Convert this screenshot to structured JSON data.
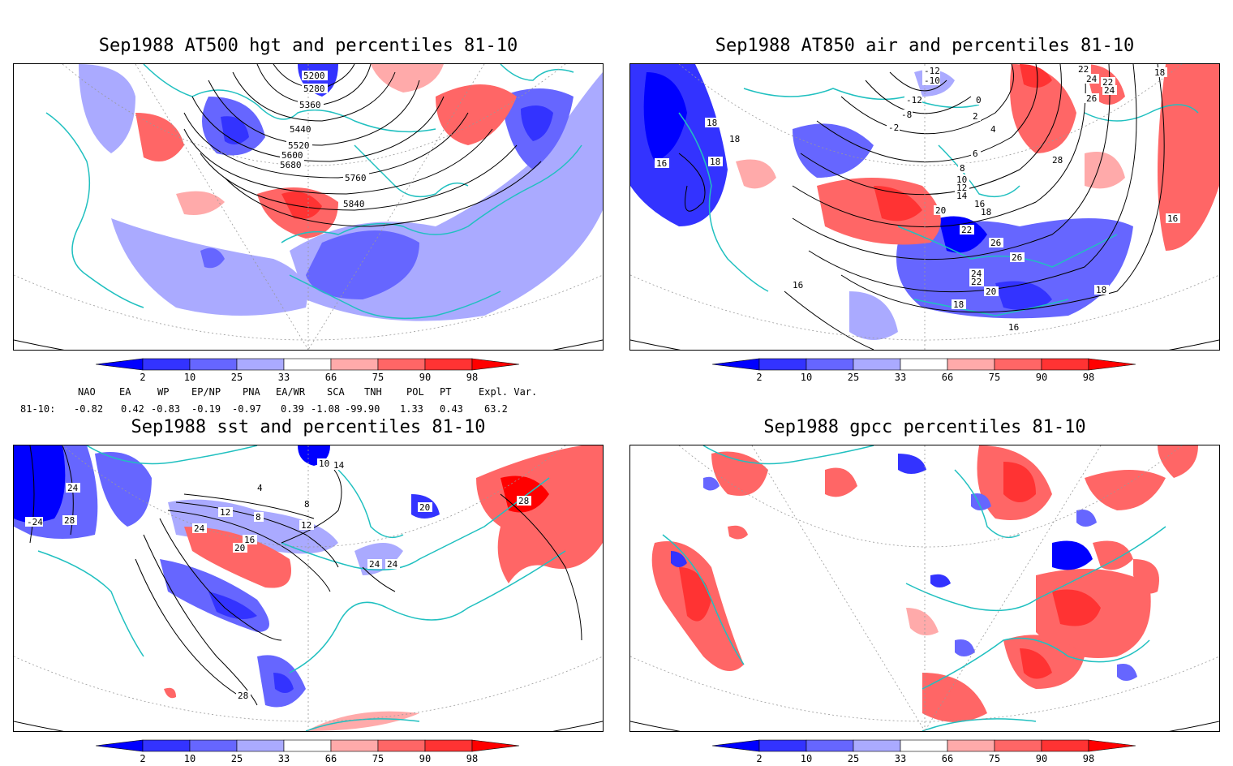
{
  "panels": [
    {
      "title": "Sep1988 AT500 hgt and percentiles 81-10",
      "contour_labels": [
        "5200",
        "5280",
        "5360",
        "5440",
        "5520",
        "5600",
        "5680",
        "5760",
        "5840"
      ]
    },
    {
      "title": "Sep1988 AT850 air and percentiles 81-10",
      "contour_labels": [
        "-12",
        "-10",
        "-12",
        "-8",
        "-2",
        "0",
        "2",
        "4",
        "6",
        "8",
        "10",
        "12",
        "14",
        "16",
        "18",
        "18",
        "18",
        "18",
        "16",
        "16",
        "20",
        "22",
        "22",
        "24",
        "26",
        "26",
        "24",
        "22",
        "20",
        "18",
        "16",
        "16",
        "18",
        "22",
        "24",
        "26",
        "28",
        "18"
      ]
    },
    {
      "title": "Sep1988 sst and percentiles 81-10",
      "contour_labels": [
        "-24",
        "28",
        "24",
        "12",
        "8",
        "8",
        "12",
        "16",
        "20",
        "24",
        "24",
        "20",
        "4",
        "14",
        "10",
        "24",
        "28",
        "28"
      ]
    },
    {
      "title": "Sep1988 gpcc percentiles 81-10",
      "contour_labels": []
    }
  ],
  "colorbar": {
    "ticks": [
      "2",
      "10",
      "25",
      "33",
      "66",
      "75",
      "90",
      "98"
    ],
    "colors": {
      "below2": "#0000ff",
      "c2_10": "#3333ff",
      "c10_25": "#6666ff",
      "c25_33": "#aaaaff",
      "c66_75": "#ffaaaa",
      "c75_90": "#ff6666",
      "c90_98": "#ff3333",
      "above98": "#ff0000"
    }
  },
  "indices": {
    "row_label": "81-10:",
    "names": [
      "NAO",
      "EA",
      "WP",
      "EP/NP",
      "PNA",
      "EA/WR",
      "SCA",
      "TNH",
      "POL",
      "PT",
      "Expl. Var."
    ],
    "values": [
      "-0.82",
      "0.42",
      "-0.83",
      "-0.19",
      "-0.97",
      "0.39",
      "-1.08",
      "-99.90",
      "1.33",
      "0.43",
      "63.2"
    ]
  },
  "map_colors": {
    "coast": "#20c0c0",
    "grid": "#999999",
    "contour": "#000000"
  }
}
